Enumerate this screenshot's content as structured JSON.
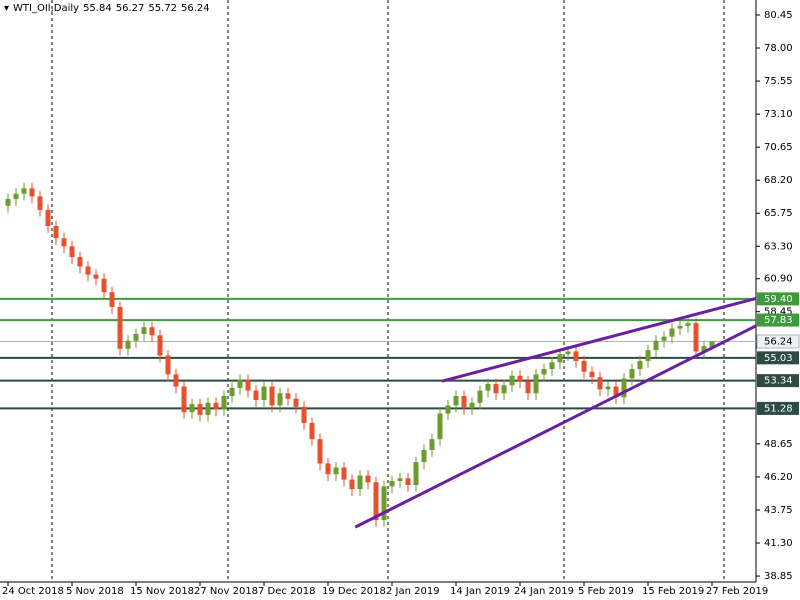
{
  "chart_data": {
    "type": "candlestick",
    "title": "WTI_OIl,Daily",
    "categories": [
      "24 Oct 2018",
      null,
      null,
      null,
      null,
      null,
      null,
      null,
      "5 Nov 2018",
      null,
      null,
      null,
      null,
      null,
      null,
      null,
      "15 Nov 2018",
      null,
      null,
      null,
      null,
      null,
      null,
      null,
      "27 Nov 2018",
      null,
      null,
      null,
      null,
      null,
      null,
      null,
      "7 Dec 2018",
      null,
      null,
      null,
      null,
      null,
      null,
      null,
      "19 Dec 2018",
      null,
      null,
      null,
      null,
      null,
      null,
      null,
      "2 Jan 2019",
      null,
      null,
      null,
      null,
      null,
      null,
      null,
      "14 Jan 2019",
      null,
      null,
      null,
      null,
      null,
      null,
      null,
      "24 Jan 2019",
      null,
      null,
      null,
      null,
      null,
      null,
      null,
      "5 Feb 2019",
      null,
      null,
      null,
      null,
      null,
      null,
      null,
      "15 Feb 2019",
      null,
      null,
      null,
      null,
      null,
      null,
      null,
      "27 Feb 2019"
    ],
    "open": [
      66.3,
      66.8,
      67.2,
      67.6,
      67.0,
      66.0,
      64.8,
      63.9,
      63.3,
      62.5,
      61.8,
      61.2,
      60.9,
      59.9,
      58.8,
      55.7,
      56.3,
      56.8,
      57.3,
      56.7,
      55.2,
      53.8,
      52.9,
      51.0,
      51.6,
      50.8,
      51.7,
      51.2,
      52.2,
      52.8,
      53.4,
      52.6,
      51.9,
      52.9,
      51.5,
      52.4,
      52.0,
      51.4,
      50.2,
      49.0,
      47.2,
      46.4,
      46.9,
      46.0,
      45.3,
      46.3,
      45.8,
      43.0,
      45.5,
      45.9,
      46.1,
      45.6,
      47.3,
      48.2,
      49.0,
      50.9,
      51.5,
      52.2,
      51.3,
      51.7,
      52.6,
      53.1,
      52.4,
      53.0,
      53.7,
      53.3,
      52.4,
      53.8,
      54.2,
      54.7,
      55.3,
      55.5,
      54.8,
      54.0,
      53.6,
      52.7,
      52.9,
      52.1,
      53.5,
      54.2,
      54.8,
      55.6,
      56.3,
      56.6,
      57.2,
      57.4,
      57.6,
      55.5,
      55.84
    ],
    "high": [
      67.2,
      67.6,
      68.0,
      68.0,
      67.4,
      66.4,
      65.2,
      64.3,
      63.7,
      62.9,
      62.2,
      61.6,
      61.3,
      60.3,
      59.2,
      56.7,
      57.2,
      57.7,
      57.7,
      57.1,
      55.6,
      54.2,
      53.3,
      52.0,
      52.0,
      52.1,
      52.1,
      52.6,
      53.2,
      53.8,
      53.8,
      53.0,
      53.3,
      53.3,
      52.8,
      52.8,
      52.4,
      51.8,
      50.6,
      49.4,
      47.6,
      47.3,
      47.3,
      46.4,
      46.7,
      46.7,
      46.2,
      45.9,
      46.3,
      46.5,
      46.5,
      47.7,
      48.6,
      49.4,
      51.3,
      51.9,
      52.6,
      52.6,
      52.1,
      53.0,
      53.5,
      53.5,
      53.4,
      54.1,
      54.1,
      53.7,
      54.2,
      54.6,
      55.1,
      55.7,
      55.9,
      55.9,
      55.2,
      54.4,
      54.0,
      53.3,
      53.3,
      53.9,
      54.6,
      55.2,
      56.0,
      56.7,
      57.0,
      57.6,
      57.8,
      58.0,
      58.0,
      56.3,
      56.27
    ],
    "low": [
      65.8,
      66.3,
      66.7,
      66.5,
      65.5,
      64.3,
      63.4,
      62.8,
      62.0,
      61.3,
      60.7,
      60.4,
      59.4,
      58.3,
      55.2,
      55.2,
      55.8,
      56.3,
      56.2,
      54.7,
      53.3,
      52.4,
      50.5,
      50.5,
      50.3,
      50.3,
      50.7,
      50.7,
      51.7,
      52.3,
      52.1,
      51.4,
      51.4,
      51.0,
      51.0,
      51.5,
      50.9,
      49.7,
      48.5,
      46.7,
      45.9,
      45.9,
      45.5,
      44.8,
      44.8,
      45.3,
      42.5,
      42.5,
      45.0,
      45.4,
      45.1,
      45.1,
      46.8,
      47.7,
      48.5,
      50.4,
      51.0,
      50.8,
      50.8,
      51.2,
      52.1,
      51.9,
      51.9,
      52.5,
      52.8,
      51.9,
      51.9,
      53.3,
      53.7,
      54.2,
      54.8,
      54.3,
      53.5,
      53.1,
      52.2,
      52.2,
      51.6,
      51.6,
      53.0,
      53.7,
      54.3,
      55.1,
      55.8,
      56.1,
      56.7,
      56.9,
      55.0,
      55.0,
      55.72
    ],
    "close": [
      66.8,
      67.2,
      67.6,
      67.0,
      66.0,
      64.8,
      63.9,
      63.3,
      62.5,
      61.8,
      61.2,
      60.9,
      59.9,
      58.8,
      55.7,
      56.3,
      56.8,
      57.3,
      56.7,
      55.2,
      53.8,
      52.9,
      51.0,
      51.6,
      50.8,
      51.7,
      51.2,
      52.2,
      52.8,
      53.4,
      52.6,
      51.9,
      52.9,
      51.5,
      52.4,
      52.0,
      51.4,
      50.2,
      49.0,
      47.2,
      46.4,
      46.9,
      46.0,
      45.3,
      46.3,
      45.8,
      43.0,
      45.5,
      45.9,
      46.1,
      45.6,
      47.3,
      48.2,
      49.0,
      50.9,
      51.5,
      52.2,
      51.3,
      51.7,
      52.6,
      53.1,
      52.4,
      53.0,
      53.7,
      53.3,
      52.4,
      53.8,
      54.2,
      54.7,
      55.3,
      55.5,
      54.8,
      54.0,
      53.6,
      52.7,
      52.9,
      52.1,
      53.5,
      54.2,
      54.8,
      55.6,
      56.3,
      56.6,
      57.2,
      57.4,
      57.6,
      55.5,
      55.9,
      56.24
    ],
    "up_color": "#6d9b2e",
    "down_color": "#e5502d",
    "xlim": [
      -1,
      93.5
    ],
    "ylim": [
      38.41,
      81.56
    ],
    "yticks": [
      80.45,
      {
        "value": 78,
        "label": "78.00"
      },
      75.55,
      {
        "value": 73.1,
        "label": "73.10"
      },
      70.65,
      {
        "value": 68.2,
        "label": "68.20"
      },
      65.75,
      {
        "value": 63.3,
        "label": "63.30"
      },
      {
        "value": 60.9,
        "label": "60.90"
      },
      58.45,
      48.65,
      {
        "value": 46.2,
        "label": "46.20"
      },
      43.75,
      {
        "value": 41.3,
        "label": "41.30"
      },
      38.85
    ],
    "separators": [
      5.5,
      27.5,
      47.5,
      69.5,
      89.5
    ],
    "levels": [
      {
        "value": 59.4,
        "label": "59.40",
        "color": "#3d9a3d"
      },
      {
        "value": 57.83,
        "color": "#3d9a3d"
      },
      {
        "value": 55.03,
        "color": "#2e4a44"
      },
      {
        "value": 53.34,
        "color": "#2e4a44"
      },
      {
        "value": 51.28,
        "color": "#2e4a44"
      }
    ],
    "trendlines": [
      {
        "x": [
          43.4,
          93.5
        ],
        "y": [
          42.48,
          57.4
        ],
        "color": "#6a1fa0"
      },
      {
        "x": [
          54.25,
          93.5
        ],
        "y": [
          53.3,
          59.43
        ],
        "color": "#6a1fa0"
      }
    ]
  }
}
